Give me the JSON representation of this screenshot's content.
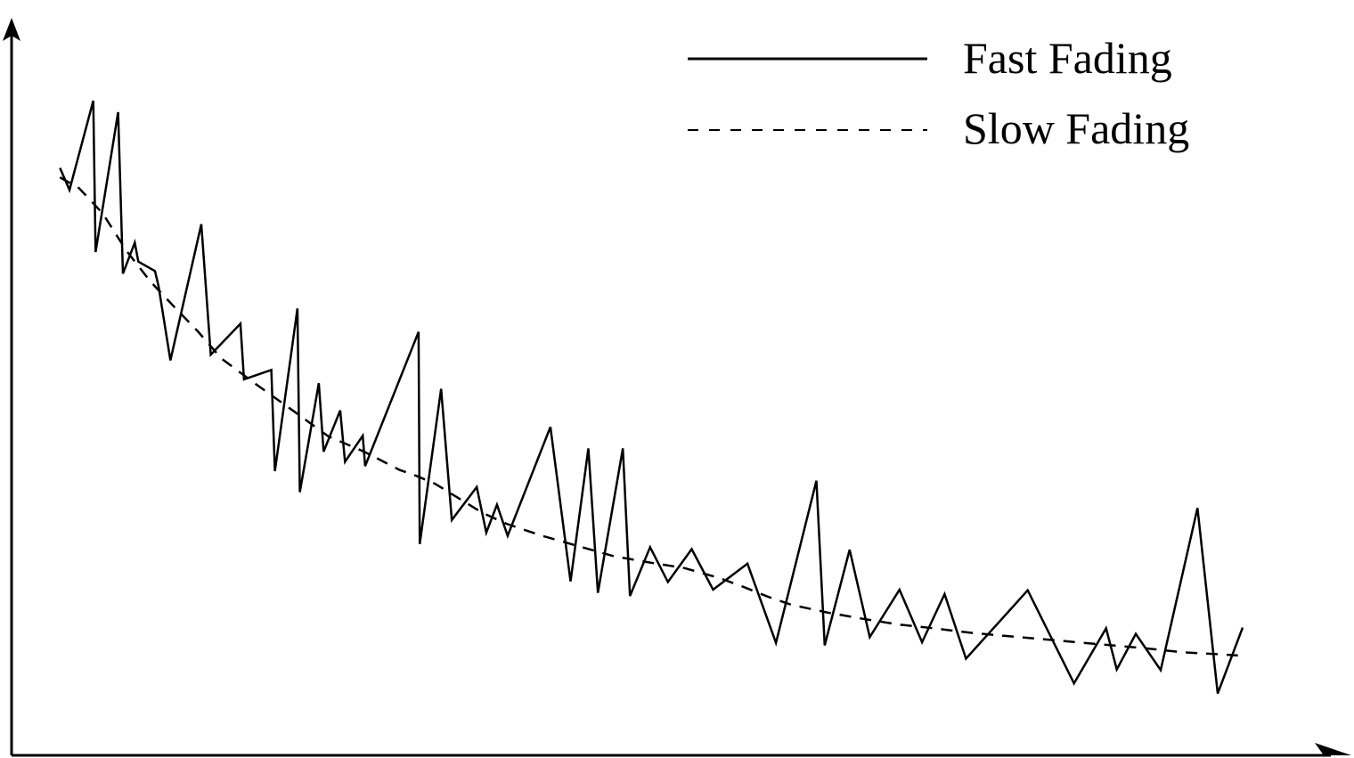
{
  "chart_data": {
    "type": "line",
    "title": "",
    "xlabel": "",
    "ylabel": "",
    "grid": false,
    "legend_placement": "top-right",
    "colors": {
      "line": "#000000",
      "background": "#ffffff"
    },
    "series": [
      {
        "name": "Fast Fading",
        "style": "solid",
        "points": [
          [
            0.4,
            87.7
          ],
          [
            1.2,
            84.2
          ],
          [
            3.2,
            98.3
          ],
          [
            3.4,
            74.4
          ],
          [
            5.3,
            96.5
          ],
          [
            5.7,
            71.0
          ],
          [
            6.7,
            75.9
          ],
          [
            7.0,
            72.9
          ],
          [
            8.4,
            71.4
          ],
          [
            8.7,
            69.0
          ],
          [
            9.7,
            57.3
          ],
          [
            12.3,
            78.8
          ],
          [
            13.1,
            58.2
          ],
          [
            15.6,
            63.1
          ],
          [
            15.9,
            54.3
          ],
          [
            18.2,
            55.8
          ],
          [
            18.5,
            39.8
          ],
          [
            20.4,
            65.5
          ],
          [
            20.6,
            36.5
          ],
          [
            22.2,
            53.7
          ],
          [
            22.6,
            42.9
          ],
          [
            24.0,
            49.4
          ],
          [
            24.4,
            41.3
          ],
          [
            25.9,
            45.4
          ],
          [
            26.1,
            40.6
          ],
          [
            30.6,
            61.8
          ],
          [
            30.7,
            28.3
          ],
          [
            32.5,
            52.8
          ],
          [
            33.4,
            32.1
          ],
          [
            35.5,
            37.3
          ],
          [
            36.3,
            30.1
          ],
          [
            37.2,
            34.5
          ],
          [
            38.1,
            29.6
          ],
          [
            41.7,
            46.8
          ],
          [
            43.4,
            22.4
          ],
          [
            44.9,
            43.4
          ],
          [
            45.7,
            20.6
          ],
          [
            47.8,
            43.4
          ],
          [
            48.4,
            20.1
          ],
          [
            50.1,
            27.8
          ],
          [
            51.6,
            22.3
          ],
          [
            53.6,
            27.5
          ],
          [
            55.4,
            21.1
          ],
          [
            58.3,
            25.2
          ],
          [
            60.7,
            12.7
          ],
          [
            64.1,
            38.3
          ],
          [
            64.8,
            12.3
          ],
          [
            66.9,
            27.4
          ],
          [
            68.6,
            13.6
          ],
          [
            71.1,
            21.1
          ],
          [
            73.0,
            12.8
          ],
          [
            74.9,
            20.4
          ],
          [
            76.7,
            10.2
          ],
          [
            81.9,
            21.0
          ],
          [
            85.8,
            6.3
          ],
          [
            88.5,
            15.0
          ],
          [
            89.4,
            8.5
          ],
          [
            91.0,
            14.1
          ],
          [
            93.1,
            8.4
          ],
          [
            96.2,
            34.0
          ],
          [
            97.9,
            4.7
          ],
          [
            100.0,
            15.1
          ]
        ]
      },
      {
        "name": "Slow Fading",
        "style": "dashed",
        "points": [
          [
            0.4,
            86.2
          ],
          [
            2.0,
            84.5
          ],
          [
            4.0,
            80.5
          ],
          [
            6.0,
            74.6
          ],
          [
            8.0,
            69.8
          ],
          [
            10.0,
            65.8
          ],
          [
            12.0,
            61.9
          ],
          [
            14.0,
            57.6
          ],
          [
            17.0,
            53.4
          ],
          [
            20.0,
            49.4
          ],
          [
            23.0,
            45.3
          ],
          [
            26.0,
            42.9
          ],
          [
            29.0,
            40.0
          ],
          [
            30.5,
            39.0
          ],
          [
            32.0,
            37.8
          ],
          [
            34.0,
            35.5
          ],
          [
            36.0,
            33.2
          ],
          [
            38.0,
            31.5
          ],
          [
            41.0,
            29.6
          ],
          [
            44.0,
            28.0
          ],
          [
            47.0,
            26.4
          ],
          [
            50.0,
            25.4
          ],
          [
            53.0,
            24.5
          ],
          [
            56.0,
            22.9
          ],
          [
            58.0,
            21.5
          ],
          [
            60.0,
            20.0
          ],
          [
            62.0,
            18.7
          ],
          [
            65.0,
            17.5
          ],
          [
            68.0,
            16.5
          ],
          [
            71.0,
            15.6
          ],
          [
            74.0,
            15.0
          ],
          [
            77.0,
            14.3
          ],
          [
            80.0,
            13.8
          ],
          [
            83.0,
            13.3
          ],
          [
            86.0,
            12.8
          ],
          [
            89.0,
            12.3
          ],
          [
            92.0,
            11.8
          ],
          [
            95.0,
            11.2
          ],
          [
            98.0,
            10.9
          ],
          [
            99.6,
            10.7
          ]
        ]
      }
    ]
  }
}
